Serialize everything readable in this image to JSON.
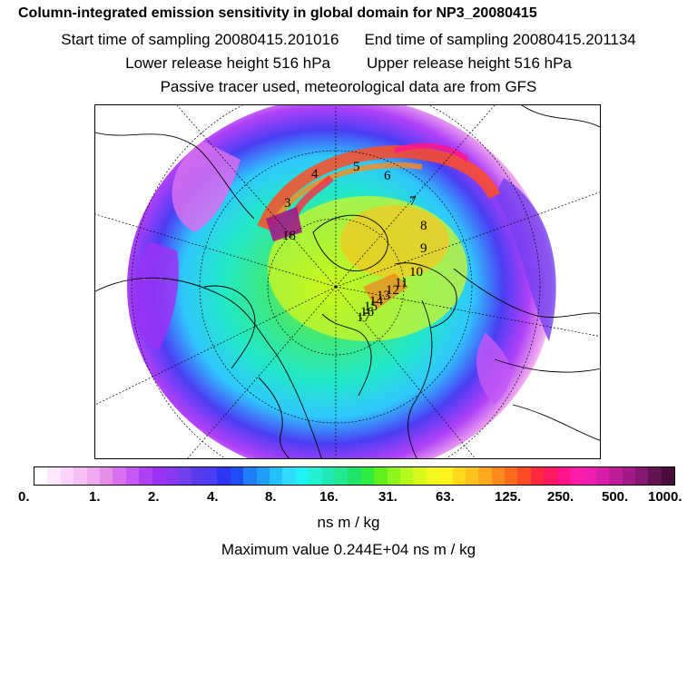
{
  "header": {
    "title": "Column-integrated emission sensitivity in global domain for NP3_20080415",
    "start_label": "Start time of sampling 20080415.201016",
    "end_label": "End time of sampling 20080415.201134",
    "lower_label": "Lower release height  516 hPa",
    "upper_label": "Upper release height  516 hPa",
    "tracer_label": "Passive tracer used, meteorological data are from GFS"
  },
  "map": {
    "projection": "polar stereographic (north pole)",
    "trajectory_labels": [
      "3",
      "4",
      "5",
      "6",
      "7",
      "8",
      "9",
      "10",
      "11",
      "12",
      "13",
      "14",
      "15",
      "16",
      "17",
      "18"
    ]
  },
  "colorbar": {
    "colors": [
      "#ffffff",
      "#fde8fd",
      "#fad4fa",
      "#f6bff6",
      "#f0a8f0",
      "#e58ee8",
      "#d870f0",
      "#c659f5",
      "#b040f7",
      "#9a33f5",
      "#8a38f2",
      "#7340f0",
      "#5a3af0",
      "#4b3df5",
      "#2f36f2",
      "#1f4cf5",
      "#1f7cfa",
      "#1f9cfc",
      "#22c0fd",
      "#30dcfe",
      "#1ff2f4",
      "#22f0d2",
      "#1fe8b4",
      "#22e890",
      "#1ee46a",
      "#2fec40",
      "#60f01c",
      "#8cf51c",
      "#b4f81e",
      "#daf81c",
      "#f2f820",
      "#fff21c",
      "#ffd81c",
      "#ffc21c",
      "#ffa81c",
      "#ff8a1c",
      "#ff6a1c",
      "#ff4c24",
      "#ff2a40",
      "#ff1a60",
      "#ff148a",
      "#ff1aa8",
      "#f01eb0",
      "#d81ea8",
      "#c01c98",
      "#a21a88",
      "#841870",
      "#651452",
      "#4a0e3c"
    ],
    "tick_labels": [
      "0.",
      "1.",
      "2.",
      "4.",
      "8.",
      "16.",
      "31.",
      "63.",
      "125.",
      "250.",
      "500.",
      "1000."
    ],
    "unit": "ns m / kg"
  },
  "footer": {
    "max_value": "Maximum value  0.244E+04 ns m / kg"
  }
}
